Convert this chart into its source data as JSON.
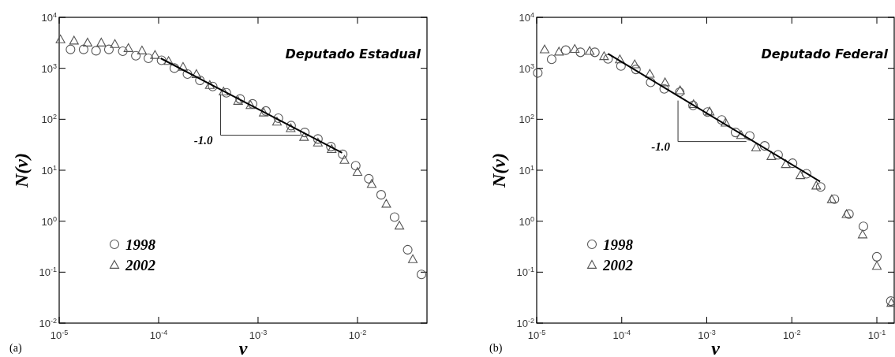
{
  "chart_data": [
    {
      "type": "scatter",
      "title": "Deputado Estadual",
      "xlabel": "v",
      "ylabel": "N(v)",
      "log": "xy",
      "grid": false,
      "legend": "bottom left",
      "xlim": [
        1e-05,
        0.05
      ],
      "ylim": [
        0.01,
        10000
      ],
      "xticks": [
        {
          "value": 1e-05,
          "label": "10$^{-5}$"
        },
        {
          "value": 0.0001,
          "label": "10$^{-4}$"
        },
        {
          "value": 0.001,
          "label": "10$^{-3}$"
        },
        {
          "value": 0.01,
          "label": "10$^{-2}$"
        }
      ],
      "yticks": [
        {
          "value": 0.01,
          "label": "10$^{-2}$"
        },
        {
          "value": 0.1,
          "label": "10$^{-1}$"
        },
        {
          "value": 1,
          "label": "10$^{0}$"
        },
        {
          "value": 10,
          "label": "10$^{1}$"
        },
        {
          "value": 100,
          "label": "10$^{2}$"
        },
        {
          "value": 1000,
          "label": "10$^{3}$"
        },
        {
          "value": 10000,
          "label": "10$^{4}$"
        }
      ],
      "annotations": [
        "(a)",
        "-1.0"
      ],
      "series": [
        {
          "name": "1998",
          "marker": "circle",
          "color": "#555555",
          "x": [
            1.3e-05,
            1.76e-05,
            2.35e-05,
            3.16e-05,
            4.36e-05,
            5.9e-05,
            7.9e-05,
            0.000107,
            0.000144,
            0.000195,
            0.00026,
            0.00035,
            0.00048,
            0.00066,
            0.00088,
            0.0012,
            0.0016,
            0.00215,
            0.00295,
            0.004,
            0.0054,
            0.0071,
            0.0096,
            0.013,
            0.0173,
            0.0236,
            0.032,
            0.044
          ],
          "values": [
            2350,
            2350,
            2210,
            2350,
            2160,
            1760,
            1570,
            1440,
            1010,
            770,
            580,
            440,
            330,
            250,
            200,
            145,
            105,
            75,
            55,
            41,
            29,
            20.5,
            12.3,
            6.8,
            3.3,
            1.2,
            0.275,
            0.09
          ]
        },
        {
          "name": "2002",
          "marker": "triangle",
          "color": "#555555",
          "x": [
            1.03e-05,
            1.41e-05,
            1.93e-05,
            2.65e-05,
            3.63e-05,
            4.97e-05,
            6.8e-05,
            9.2e-05,
            0.000126,
            0.000176,
            0.00024,
            0.000327,
            0.00045,
            0.00063,
            0.00084,
            0.00114,
            0.00155,
            0.00213,
            0.0029,
            0.004,
            0.0055,
            0.0074,
            0.01,
            0.0139,
            0.0195,
            0.0264,
            0.036
          ],
          "values": [
            3700,
            3500,
            3200,
            3200,
            3000,
            2500,
            2240,
            1830,
            1390,
            1070,
            770,
            470,
            350,
            230,
            190,
            136,
            90,
            67,
            45,
            35,
            26,
            16,
            9.3,
            5.4,
            2.2,
            0.82,
            0.18
          ]
        },
        {
          "type": "line",
          "color": "#000000",
          "line_style": "solid",
          "x": [
            0.000105,
            0.007
          ],
          "values": [
            1570,
            22
          ]
        }
      ]
    },
    {
      "type": "scatter",
      "title": "Deputado Federal",
      "xlabel": "v",
      "ylabel": "N(v)",
      "log": "xy",
      "grid": false,
      "legend": "bottom left",
      "xlim": [
        1e-05,
        0.16
      ],
      "ylim": [
        0.01,
        10000
      ],
      "xticks": [
        {
          "value": 1e-05,
          "label": "10$^{-5}$"
        },
        {
          "value": 0.0001,
          "label": "10$^{-4}$"
        },
        {
          "value": 0.001,
          "label": "10$^{-3}$"
        },
        {
          "value": 0.01,
          "label": "10$^{-2}$"
        },
        {
          "value": 0.1,
          "label": "10$^{-1}$"
        }
      ],
      "yticks": [
        {
          "value": 0.01,
          "label": "10$^{-2}$"
        },
        {
          "value": 0.1,
          "label": "10$^{-1}$"
        },
        {
          "value": 1,
          "label": "10$^{0}$"
        },
        {
          "value": 10,
          "label": "10$^{1}$"
        },
        {
          "value": 100,
          "label": "10$^{2}$"
        },
        {
          "value": 1000,
          "label": "10$^{3}$"
        },
        {
          "value": 10000,
          "label": "10$^{4}$"
        }
      ],
      "annotations": [
        "(b)",
        "-1.0"
      ],
      "series": [
        {
          "name": "1998",
          "marker": "circle",
          "color": "#555555",
          "x": [
            1.03e-05,
            1.5e-05,
            2.2e-05,
            3.27e-05,
            4.83e-05,
            6.9e-05,
            9.8e-05,
            0.000147,
            0.000219,
            0.000316,
            0.00048,
            0.00069,
            0.00102,
            0.0015,
            0.00218,
            0.0032,
            0.0048,
            0.0069,
            0.0102,
            0.0149,
            0.0218,
            0.0317,
            0.047,
            0.0695,
            0.1,
            0.146
          ],
          "values": [
            810,
            1500,
            2270,
            2060,
            2060,
            1530,
            1110,
            950,
            530,
            395,
            340,
            187,
            138,
            97,
            55,
            47,
            30,
            20,
            13.7,
            8.5,
            4.7,
            2.7,
            1.38,
            0.79,
            0.2,
            0.027
          ]
        },
        {
          "name": "2002",
          "marker": "triangle",
          "color": "#555555",
          "x": [
            1.24e-05,
            1.83e-05,
            2.8e-05,
            4.2e-05,
            6.2e-05,
            9.5e-05,
            0.000142,
            0.000214,
            0.000323,
            0.000485,
            0.0007,
            0.00108,
            0.00166,
            0.00253,
            0.0038,
            0.00575,
            0.0085,
            0.0126,
            0.0194,
            0.0295,
            0.044,
            0.068,
            0.1,
            0.148
          ],
          "values": [
            2350,
            2130,
            2400,
            2190,
            1730,
            1500,
            1200,
            780,
            530,
            370,
            198,
            142,
            86,
            49,
            28,
            19,
            13.2,
            8.0,
            5.0,
            2.7,
            1.38,
            0.55,
            0.133,
            0.025
          ]
        },
        {
          "type": "line",
          "color": "#000000",
          "line_style": "solid",
          "x": [
            6.9e-05,
            0.0215
          ],
          "values": [
            1940,
            6.0
          ]
        }
      ]
    }
  ]
}
